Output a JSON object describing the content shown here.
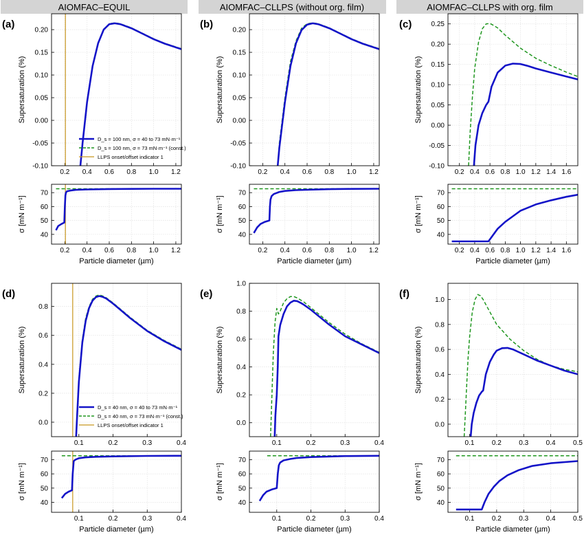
{
  "column_headers": [
    "AIOMFAC–EQUIL",
    "AIOMFAC–CLLPS (without org. film)",
    "AIOMFAC–CLLPS with org. film"
  ],
  "colors": {
    "sigma_var": "#1414c8",
    "sigma_const": "#1e961e",
    "llps": "#c8961e",
    "header_bg": "#d4d4d4"
  },
  "legend_row1": [
    "D_s = 100 nm, σ = 40 to 73 mN·m⁻¹",
    "D_s = 100 nm, σ = 73 mN·m⁻¹ (const.)",
    "LLPS onset/offset indicator 1"
  ],
  "legend_row2": [
    "D_s = 40 nm, σ = 40 to 73 mN·m⁻¹",
    "D_s = 40 nm, σ = 73 mN·m⁻¹ (const.)",
    "LLPS onset/offset indicator 1"
  ],
  "chart_data": [
    {
      "panel": "(a)",
      "type": "line",
      "ylabel": "Supersaturation  (%)",
      "xlim": [
        0.08,
        1.25
      ],
      "ylim": [
        -0.1,
        0.235
      ],
      "xticks": [
        0.2,
        0.4,
        0.6,
        0.8,
        1.0,
        1.2
      ],
      "yticks": [
        -0.1,
        -0.05,
        0.0,
        0.05,
        0.1,
        0.15,
        0.2
      ],
      "vline": 0.205,
      "series": [
        {
          "style": "var",
          "x": [
            0.34,
            0.36,
            0.4,
            0.45,
            0.5,
            0.55,
            0.6,
            0.65,
            0.7,
            0.8,
            0.9,
            1.0,
            1.1,
            1.25
          ],
          "y": [
            -0.1,
            -0.05,
            0.04,
            0.12,
            0.17,
            0.2,
            0.212,
            0.214,
            0.212,
            0.203,
            0.191,
            0.179,
            0.169,
            0.157
          ]
        },
        {
          "style": "const",
          "x": [
            0.34,
            0.36,
            0.4,
            0.45,
            0.5,
            0.55,
            0.6,
            0.65,
            0.7,
            0.8,
            0.9,
            1.0,
            1.1,
            1.25
          ],
          "y": [
            -0.1,
            -0.05,
            0.04,
            0.12,
            0.17,
            0.201,
            0.213,
            0.215,
            0.213,
            0.204,
            0.192,
            0.18,
            0.17,
            0.158
          ]
        }
      ]
    },
    {
      "panel": "(a)",
      "type": "line",
      "ylabel": "σ  [mN m⁻¹]",
      "xlabel": "Particle diameter  (µm)",
      "xlim": [
        0.08,
        1.25
      ],
      "ylim": [
        33,
        76
      ],
      "xticks": [
        0.2,
        0.4,
        0.6,
        0.8,
        1.0,
        1.2
      ],
      "yticks": [
        40,
        50,
        60,
        70
      ],
      "vline": 0.205,
      "series": [
        {
          "style": "var",
          "x": [
            0.12,
            0.14,
            0.17,
            0.195,
            0.2,
            0.205,
            0.21,
            0.22,
            0.25,
            0.3,
            0.4,
            0.6,
            0.8,
            1.0,
            1.25
          ],
          "y": [
            43,
            46,
            47.5,
            48.5,
            60,
            68,
            70,
            71,
            71.5,
            72,
            72.3,
            72.6,
            72.7,
            72.8,
            72.8
          ]
        },
        {
          "style": "const",
          "x": [
            0.12,
            1.25
          ],
          "y": [
            72.8,
            72.8
          ]
        }
      ]
    },
    {
      "panel": "(b)",
      "type": "line",
      "ylabel": "Supersaturation  (%)",
      "xlim": [
        0.08,
        1.25
      ],
      "ylim": [
        -0.1,
        0.235
      ],
      "xticks": [
        0.2,
        0.4,
        0.6,
        0.8,
        1.0,
        1.2
      ],
      "yticks": [
        -0.1,
        -0.05,
        0.0,
        0.05,
        0.1,
        0.15,
        0.2
      ],
      "series": [
        {
          "style": "var",
          "x": [
            0.335,
            0.35,
            0.4,
            0.45,
            0.5,
            0.55,
            0.6,
            0.65,
            0.7,
            0.8,
            0.9,
            1.0,
            1.1,
            1.25
          ],
          "y": [
            -0.1,
            -0.06,
            0.04,
            0.12,
            0.17,
            0.199,
            0.211,
            0.214,
            0.212,
            0.203,
            0.191,
            0.179,
            0.169,
            0.157
          ]
        },
        {
          "style": "const",
          "x": [
            0.335,
            0.35,
            0.4,
            0.45,
            0.5,
            0.55,
            0.6,
            0.65,
            0.7,
            0.8,
            0.9,
            1.0,
            1.1,
            1.25
          ],
          "y": [
            -0.1,
            -0.05,
            0.05,
            0.13,
            0.175,
            0.203,
            0.213,
            0.215,
            0.213,
            0.204,
            0.192,
            0.18,
            0.17,
            0.158
          ]
        }
      ]
    },
    {
      "panel": "(b)",
      "type": "line",
      "ylabel": "σ  [mN m⁻¹]",
      "xlabel": "Particle diameter  (µm)",
      "xlim": [
        0.08,
        1.25
      ],
      "ylim": [
        33,
        76
      ],
      "xticks": [
        0.2,
        0.4,
        0.6,
        0.8,
        1.0,
        1.2
      ],
      "yticks": [
        40,
        50,
        60,
        70
      ],
      "series": [
        {
          "style": "var",
          "x": [
            0.12,
            0.15,
            0.18,
            0.22,
            0.26,
            0.265,
            0.27,
            0.28,
            0.3,
            0.35,
            0.4,
            0.5,
            0.6,
            0.8,
            1.0,
            1.25
          ],
          "y": [
            41,
            45,
            47.5,
            49,
            50,
            60,
            65,
            67.5,
            69,
            70.5,
            71.2,
            71.8,
            72.1,
            72.5,
            72.7,
            72.8
          ]
        },
        {
          "style": "const",
          "x": [
            0.12,
            1.25
          ],
          "y": [
            72.8,
            72.8
          ]
        }
      ]
    },
    {
      "panel": "(c)",
      "type": "line",
      "ylabel": "Supersaturation  (%)",
      "xlim": [
        0.05,
        1.75
      ],
      "ylim": [
        -0.1,
        0.275
      ],
      "xticks": [
        0.2,
        0.4,
        0.6,
        0.8,
        1.0,
        1.2,
        1.4,
        1.6
      ],
      "yticks": [
        -0.1,
        -0.05,
        0.0,
        0.05,
        0.1,
        0.15,
        0.2,
        0.25
      ],
      "series": [
        {
          "style": "var",
          "x": [
            0.39,
            0.41,
            0.45,
            0.5,
            0.55,
            0.58,
            0.62,
            0.7,
            0.8,
            0.9,
            1.0,
            1.1,
            1.2,
            1.4,
            1.6,
            1.75
          ],
          "y": [
            -0.1,
            -0.05,
            0.0,
            0.03,
            0.05,
            0.058,
            0.095,
            0.13,
            0.147,
            0.152,
            0.151,
            0.146,
            0.14,
            0.13,
            0.12,
            0.113
          ]
        },
        {
          "style": "const",
          "x": [
            0.32,
            0.34,
            0.37,
            0.4,
            0.45,
            0.5,
            0.55,
            0.6,
            0.65,
            0.7,
            0.8,
            1.0,
            1.2,
            1.4,
            1.6,
            1.75
          ],
          "y": [
            -0.1,
            -0.02,
            0.07,
            0.14,
            0.205,
            0.238,
            0.25,
            0.251,
            0.246,
            0.24,
            0.222,
            0.19,
            0.165,
            0.147,
            0.131,
            0.12
          ]
        }
      ]
    },
    {
      "panel": "(c)",
      "type": "line",
      "ylabel": "σ  [mN m⁻¹]",
      "xlabel": "Particle diameter  (µm)",
      "xlim": [
        0.05,
        1.75
      ],
      "ylim": [
        33,
        76
      ],
      "xticks": [
        0.2,
        0.4,
        0.6,
        0.8,
        1.0,
        1.2,
        1.4,
        1.6
      ],
      "yticks": [
        40,
        50,
        60,
        70
      ],
      "series": [
        {
          "style": "var",
          "x": [
            0.1,
            0.58,
            0.62,
            0.7,
            0.8,
            0.9,
            1.0,
            1.2,
            1.4,
            1.6,
            1.75
          ],
          "y": [
            35,
            35,
            38,
            44,
            49,
            53,
            57,
            61.5,
            64.5,
            67,
            68.5
          ]
        },
        {
          "style": "const",
          "x": [
            0.1,
            1.75
          ],
          "y": [
            72.8,
            72.8
          ]
        }
      ]
    },
    {
      "panel": "(d)",
      "type": "line",
      "ylabel": "Supersaturation  (%)",
      "xlim": [
        0.02,
        0.4
      ],
      "ylim": [
        -0.1,
        0.96
      ],
      "xticks": [
        0.1,
        0.2,
        0.3,
        0.4
      ],
      "yticks": [
        0.0,
        0.2,
        0.4,
        0.6,
        0.8
      ],
      "vline": 0.082,
      "series": [
        {
          "style": "var",
          "x": [
            0.092,
            0.095,
            0.1,
            0.11,
            0.12,
            0.13,
            0.14,
            0.15,
            0.16,
            0.17,
            0.18,
            0.2,
            0.22,
            0.25,
            0.3,
            0.35,
            0.4
          ],
          "y": [
            -0.1,
            0.05,
            0.28,
            0.55,
            0.7,
            0.79,
            0.84,
            0.865,
            0.872,
            0.866,
            0.855,
            0.82,
            0.78,
            0.72,
            0.63,
            0.56,
            0.5
          ]
        },
        {
          "style": "const",
          "x": [
            0.092,
            0.095,
            0.1,
            0.11,
            0.12,
            0.13,
            0.14,
            0.15,
            0.16,
            0.17,
            0.18,
            0.2,
            0.22,
            0.25,
            0.3,
            0.35,
            0.4
          ],
          "y": [
            -0.1,
            0.06,
            0.3,
            0.57,
            0.72,
            0.8,
            0.85,
            0.872,
            0.88,
            0.872,
            0.86,
            0.825,
            0.785,
            0.725,
            0.635,
            0.565,
            0.505
          ]
        }
      ]
    },
    {
      "panel": "(d)",
      "type": "line",
      "ylabel": "σ  [mN m⁻¹]",
      "xlabel": "Particle diameter  (µm)",
      "xlim": [
        0.02,
        0.4
      ],
      "ylim": [
        33,
        76
      ],
      "xticks": [
        0.1,
        0.2,
        0.3,
        0.4
      ],
      "yticks": [
        40,
        50,
        60,
        70
      ],
      "vline": 0.082,
      "series": [
        {
          "style": "var",
          "x": [
            0.05,
            0.06,
            0.07,
            0.08,
            0.082,
            0.085,
            0.09,
            0.1,
            0.12,
            0.15,
            0.2,
            0.3,
            0.4
          ],
          "y": [
            43,
            46,
            47.5,
            48.5,
            60,
            69,
            70,
            71,
            71.6,
            72,
            72.3,
            72.6,
            72.7
          ]
        },
        {
          "style": "const",
          "x": [
            0.05,
            0.4
          ],
          "y": [
            72.7,
            72.7
          ]
        }
      ]
    },
    {
      "panel": "(e)",
      "type": "line",
      "ylabel": "Supersaturation  (%)",
      "xlim": [
        0.02,
        0.4
      ],
      "ylim": [
        -0.1,
        1.0
      ],
      "xticks": [
        0.1,
        0.2,
        0.3,
        0.4
      ],
      "yticks": [
        0.0,
        0.2,
        0.4,
        0.6,
        0.8,
        1.0
      ],
      "series": [
        {
          "style": "var",
          "x": [
            0.094,
            0.096,
            0.1,
            0.103,
            0.105,
            0.11,
            0.12,
            0.13,
            0.14,
            0.15,
            0.16,
            0.17,
            0.18,
            0.2,
            0.22,
            0.25,
            0.3,
            0.35,
            0.4
          ],
          "y": [
            -0.1,
            0.05,
            0.2,
            0.4,
            0.62,
            0.7,
            0.78,
            0.835,
            0.862,
            0.875,
            0.872,
            0.86,
            0.845,
            0.81,
            0.77,
            0.71,
            0.62,
            0.56,
            0.5
          ]
        },
        {
          "style": "const",
          "x": [
            0.082,
            0.086,
            0.09,
            0.095,
            0.1,
            0.105,
            0.11,
            0.12,
            0.13,
            0.14,
            0.15,
            0.16,
            0.17,
            0.18,
            0.2,
            0.22,
            0.25,
            0.3,
            0.35,
            0.4
          ],
          "y": [
            -0.1,
            0.2,
            0.5,
            0.72,
            0.82,
            0.78,
            0.8,
            0.86,
            0.89,
            0.905,
            0.905,
            0.895,
            0.88,
            0.865,
            0.825,
            0.785,
            0.725,
            0.635,
            0.565,
            0.505
          ]
        }
      ]
    },
    {
      "panel": "(e)",
      "type": "line",
      "ylabel": "σ  [mN m⁻¹]",
      "xlabel": "Particle diameter  (µm)",
      "xlim": [
        0.02,
        0.4
      ],
      "ylim": [
        33,
        76
      ],
      "xticks": [
        0.1,
        0.2,
        0.3,
        0.4
      ],
      "yticks": [
        40,
        50,
        60,
        70
      ],
      "series": [
        {
          "style": "var",
          "x": [
            0.05,
            0.06,
            0.07,
            0.085,
            0.1,
            0.103,
            0.106,
            0.11,
            0.12,
            0.14,
            0.16,
            0.2,
            0.25,
            0.3,
            0.4
          ],
          "y": [
            41,
            45,
            47.5,
            49,
            50,
            60,
            66,
            68,
            69.5,
            70.5,
            71.2,
            71.8,
            72.2,
            72.5,
            72.7
          ]
        },
        {
          "style": "const",
          "x": [
            0.072,
            0.4
          ],
          "y": [
            72.7,
            72.7
          ]
        }
      ]
    },
    {
      "panel": "(f)",
      "type": "line",
      "ylabel": "Supersaturation  (%)",
      "xlim": [
        0.02,
        0.5
      ],
      "ylim": [
        -0.1,
        1.13
      ],
      "xticks": [
        0.1,
        0.2,
        0.3,
        0.4,
        0.5
      ],
      "yticks": [
        0.0,
        0.2,
        0.4,
        0.6,
        0.8,
        1.0
      ],
      "series": [
        {
          "style": "var",
          "x": [
            0.104,
            0.108,
            0.115,
            0.125,
            0.135,
            0.145,
            0.15,
            0.16,
            0.175,
            0.19,
            0.2,
            0.22,
            0.24,
            0.26,
            0.3,
            0.35,
            0.4,
            0.45,
            0.5
          ],
          "y": [
            -0.1,
            0.0,
            0.09,
            0.17,
            0.23,
            0.26,
            0.27,
            0.4,
            0.5,
            0.56,
            0.59,
            0.61,
            0.612,
            0.6,
            0.56,
            0.51,
            0.47,
            0.43,
            0.4
          ]
        },
        {
          "style": "const",
          "x": [
            0.08,
            0.085,
            0.09,
            0.095,
            0.1,
            0.11,
            0.12,
            0.13,
            0.14,
            0.15,
            0.16,
            0.18,
            0.2,
            0.25,
            0.3,
            0.35,
            0.4,
            0.45,
            0.5
          ],
          "y": [
            -0.1,
            0.12,
            0.35,
            0.55,
            0.7,
            0.9,
            1.0,
            1.04,
            1.03,
            1.0,
            0.96,
            0.88,
            0.8,
            0.68,
            0.59,
            0.52,
            0.47,
            0.44,
            0.42
          ]
        }
      ]
    },
    {
      "panel": "(f)",
      "type": "line",
      "ylabel": "σ  [mN m⁻¹]",
      "xlabel": "Particle diameter  (µm)",
      "xlim": [
        0.02,
        0.5
      ],
      "ylim": [
        33,
        76
      ],
      "xticks": [
        0.1,
        0.2,
        0.3,
        0.4,
        0.5
      ],
      "yticks": [
        40,
        50,
        60,
        70
      ],
      "series": [
        {
          "style": "var",
          "x": [
            0.05,
            0.145,
            0.155,
            0.17,
            0.19,
            0.21,
            0.24,
            0.28,
            0.33,
            0.4,
            0.5
          ],
          "y": [
            35,
            35,
            40,
            46,
            51,
            55,
            59,
            62.5,
            65.5,
            67.5,
            69
          ]
        },
        {
          "style": "const",
          "x": [
            0.05,
            0.5
          ],
          "y": [
            72.7,
            72.7
          ]
        }
      ]
    }
  ]
}
